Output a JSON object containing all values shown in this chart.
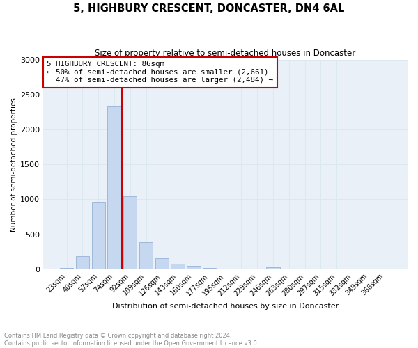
{
  "title": "5, HIGHBURY CRESCENT, DONCASTER, DN4 6AL",
  "subtitle": "Size of property relative to semi-detached houses in Doncaster",
  "xlabel": "Distribution of semi-detached houses by size in Doncaster",
  "ylabel": "Number of semi-detached properties",
  "footnote": "Contains HM Land Registry data © Crown copyright and database right 2024.\nContains public sector information licensed under the Open Government Licence v3.0.",
  "bar_labels": [
    "23sqm",
    "40sqm",
    "57sqm",
    "74sqm",
    "92sqm",
    "109sqm",
    "126sqm",
    "143sqm",
    "160sqm",
    "177sqm",
    "195sqm",
    "212sqm",
    "229sqm",
    "246sqm",
    "263sqm",
    "280sqm",
    "297sqm",
    "315sqm",
    "332sqm",
    "349sqm",
    "366sqm"
  ],
  "bar_values": [
    20,
    190,
    960,
    2330,
    1040,
    390,
    155,
    80,
    50,
    15,
    8,
    5,
    3,
    30,
    2,
    1,
    1,
    1,
    1,
    1,
    1
  ],
  "bar_color": "#c5d8f0",
  "bar_edge_color": "#a0b8d8",
  "smaller_pct": "50%",
  "smaller_count": "2,661",
  "larger_pct": "47%",
  "larger_count": "2,484",
  "vline_color": "#cc0000",
  "annotation_box_color": "#cc0000",
  "ylim": [
    0,
    3000
  ],
  "yticks": [
    0,
    500,
    1000,
    1500,
    2000,
    2500,
    3000
  ],
  "grid_color": "#dce8f0",
  "background_color": "#eaf0f8"
}
